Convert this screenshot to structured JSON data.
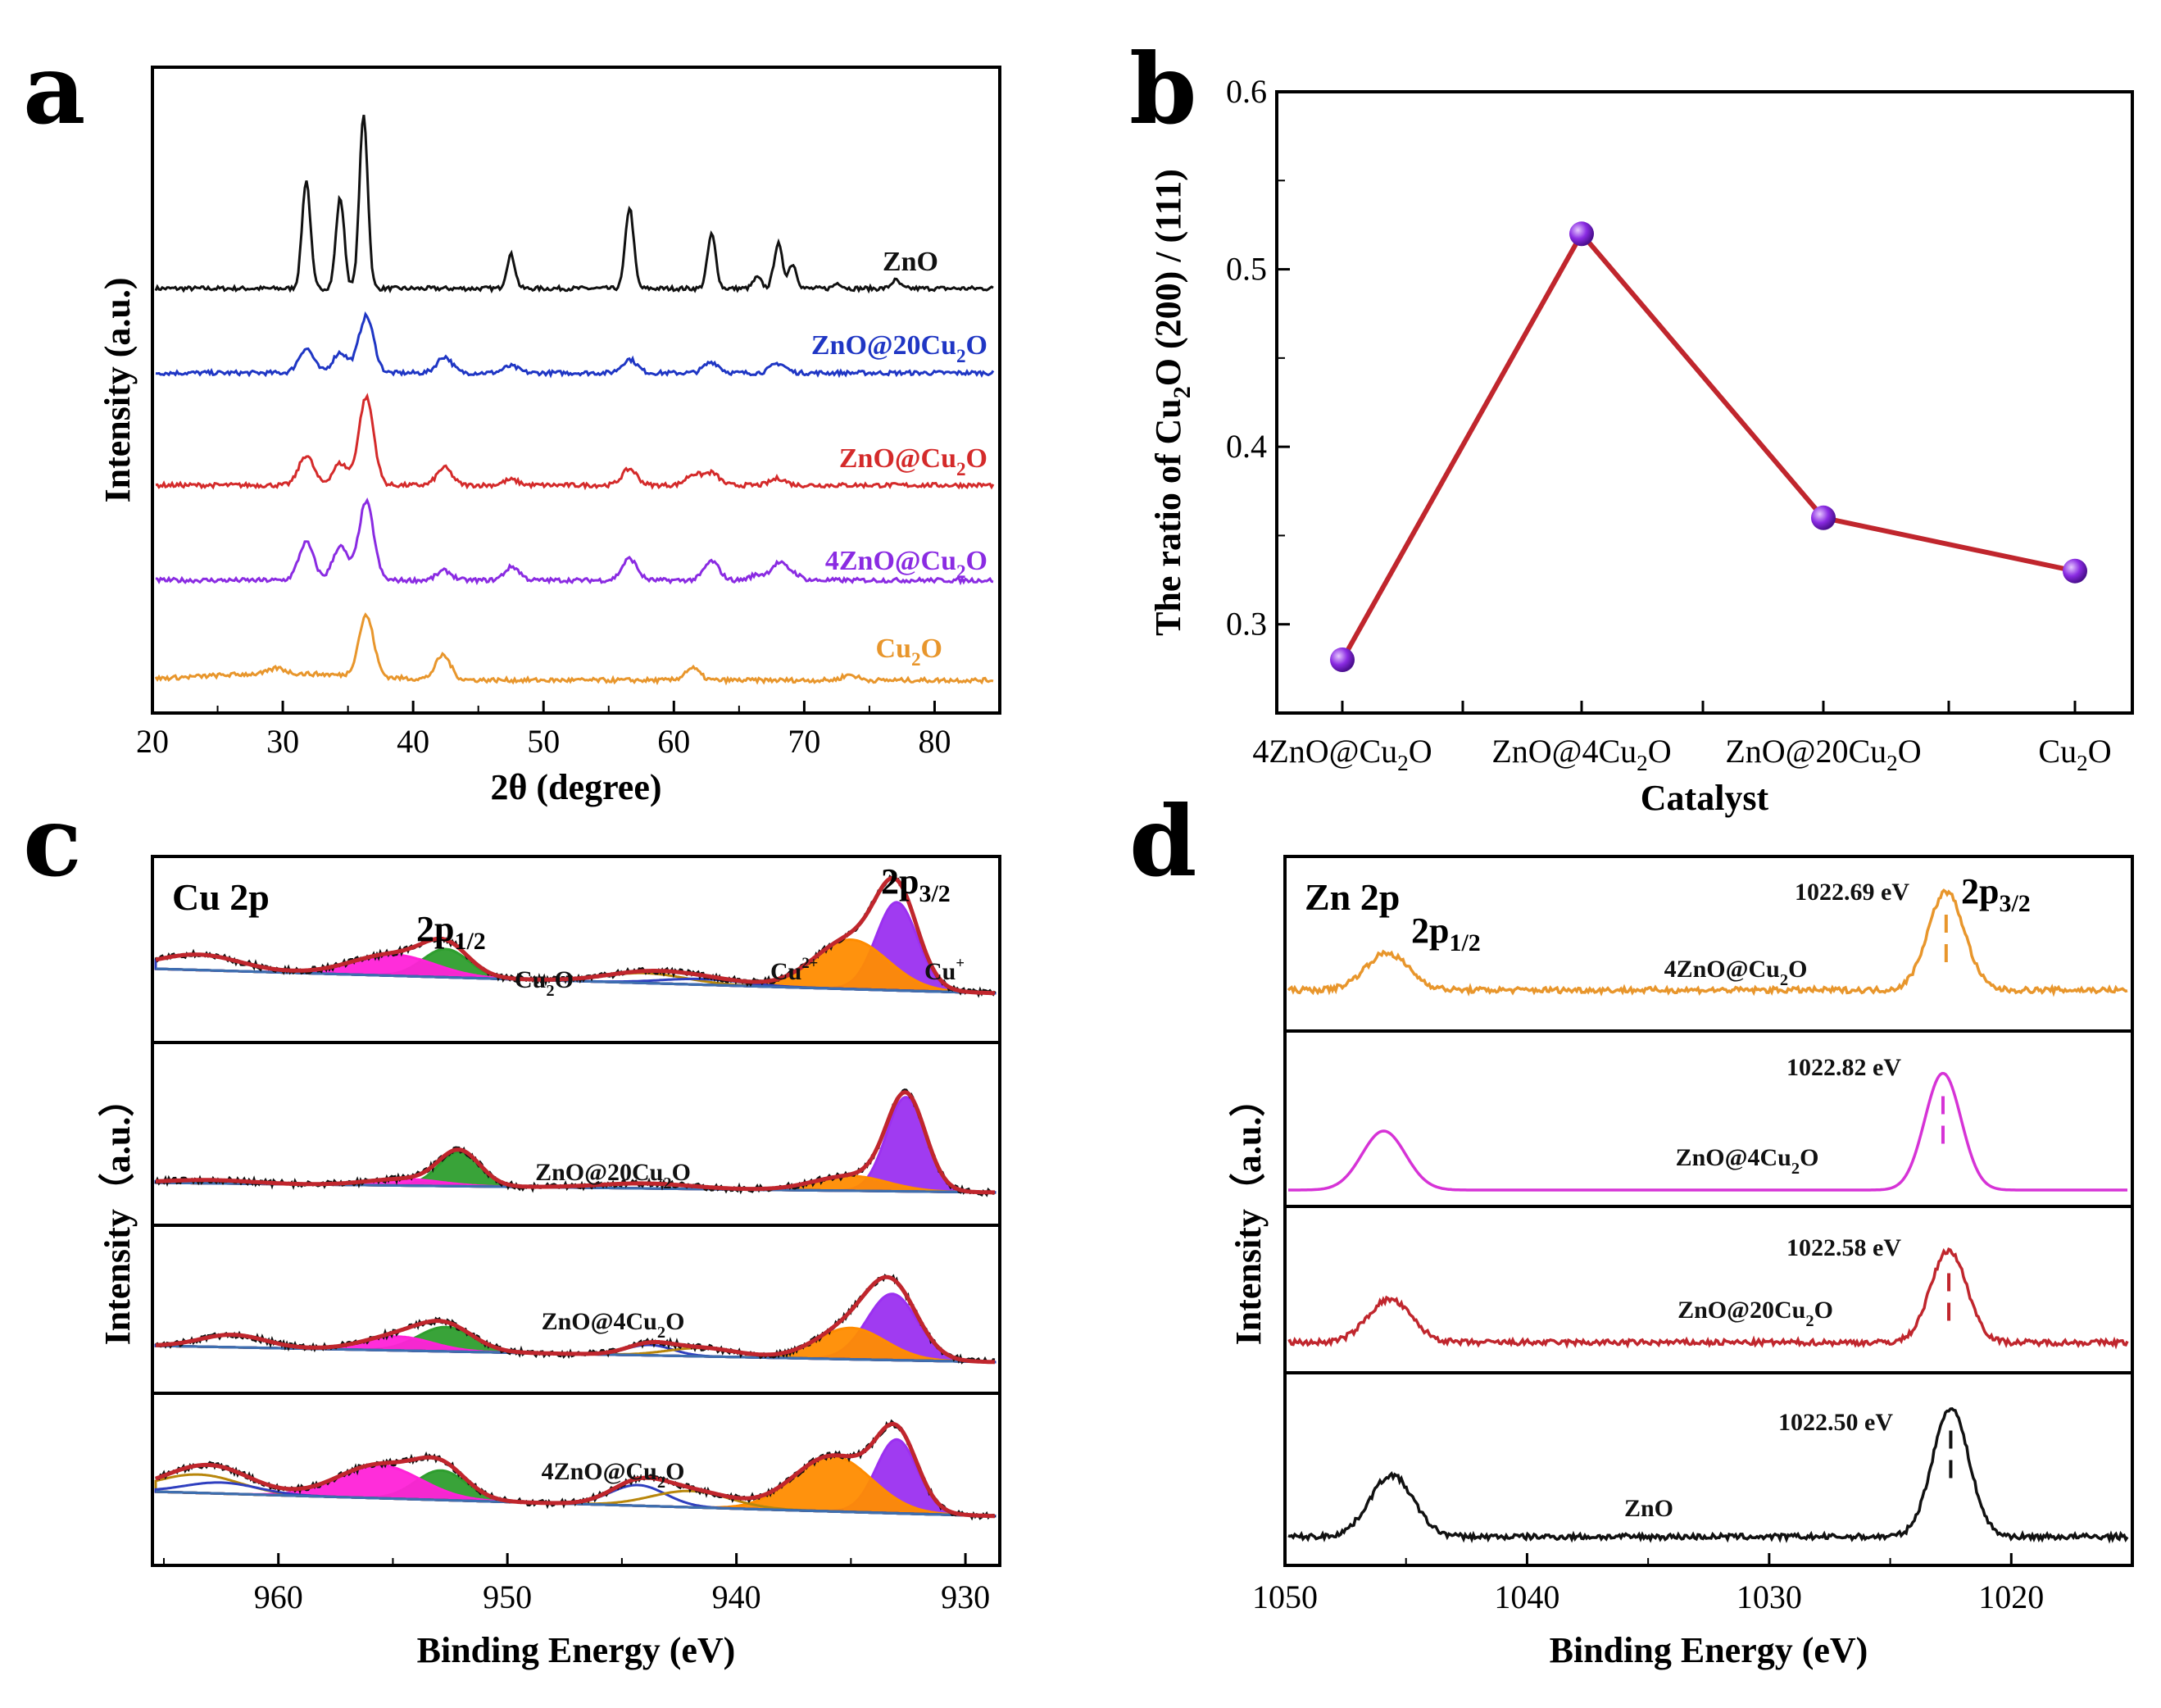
{
  "panel_labels": [
    "a",
    "b",
    "c",
    "d"
  ],
  "chart_data": [
    {
      "panel": "a",
      "type": "line",
      "xlabel": "2θ (degree)",
      "ylabel": "Intensity (a.u.)",
      "xlim": [
        20,
        85
      ],
      "xticks": [
        "20",
        "30",
        "40",
        "50",
        "60",
        "70",
        "80"
      ],
      "series": [
        {
          "name": "ZnO",
          "label": "ZnO",
          "color": "#111111",
          "peaks": [
            [
              31.8,
              80
            ],
            [
              34.4,
              67
            ],
            [
              36.2,
              128
            ],
            [
              47.5,
              25
            ],
            [
              56.6,
              60
            ],
            [
              62.9,
              40
            ],
            [
              66.4,
              8
            ],
            [
              68.0,
              33
            ],
            [
              69.1,
              18
            ],
            [
              72.6,
              4
            ],
            [
              77.0,
              6
            ]
          ]
        },
        {
          "name": "ZnO@20Cu2O",
          "label_main": "ZnO@20Cu",
          "label_sub": "2",
          "label_tail": "O",
          "color": "#1f36c4",
          "peaks": [
            [
              31.8,
              18
            ],
            [
              34.4,
              15
            ],
            [
              36.4,
              42
            ],
            [
              42.4,
              12
            ],
            [
              47.5,
              5
            ],
            [
              56.6,
              10
            ],
            [
              62.9,
              8
            ],
            [
              68.0,
              7
            ]
          ]
        },
        {
          "name": "ZnO@Cu2O",
          "label_main": "ZnO@Cu",
          "label_sub": "2",
          "label_tail": "O",
          "color": "#d42a2a",
          "peaks": [
            [
              31.8,
              22
            ],
            [
              34.4,
              16
            ],
            [
              36.4,
              65
            ],
            [
              42.4,
              13
            ],
            [
              47.5,
              4
            ],
            [
              56.6,
              12
            ],
            [
              61.5,
              8
            ],
            [
              62.9,
              9
            ],
            [
              68.0,
              5
            ]
          ]
        },
        {
          "name": "4ZnO@Cu2O",
          "label_main": "4ZnO@Cu",
          "label_sub": "2",
          "label_tail": "O",
          "color": "#8a2be2",
          "peaks": [
            [
              31.8,
              28
            ],
            [
              34.4,
              25
            ],
            [
              36.4,
              58
            ],
            [
              42.4,
              7
            ],
            [
              47.6,
              10
            ],
            [
              56.6,
              16
            ],
            [
              62.9,
              14
            ],
            [
              66.4,
              4
            ],
            [
              68.0,
              12
            ],
            [
              69.1,
              5
            ]
          ]
        },
        {
          "name": "Cu2O",
          "label_main": "Cu",
          "label_sub": "2",
          "label_tail": "O",
          "color": "#e8962c",
          "peaks": [
            [
              29.6,
              4
            ],
            [
              36.4,
              45
            ],
            [
              42.3,
              18
            ],
            [
              61.4,
              9
            ],
            [
              73.5,
              4
            ]
          ]
        }
      ]
    },
    {
      "panel": "b",
      "type": "line",
      "xlabel": "Catalyst",
      "ylabel": "The ratio of Cu2O (200) / (111)",
      "ylabel_parts": [
        "The ratio of Cu",
        "2",
        "O (200)  / (111)"
      ],
      "ylim": [
        0.25,
        0.6
      ],
      "yticks": [
        "0.3",
        "0.4",
        "0.5",
        "0.6"
      ],
      "categories": [
        "4ZnO@Cu2O",
        "ZnO@4Cu2O",
        "ZnO@20Cu2O",
        "Cu2O"
      ],
      "category_labels": [
        {
          "main": "4ZnO@Cu",
          "sub": "2",
          "tail": "O"
        },
        {
          "main": "ZnO@4Cu",
          "sub": "2",
          "tail": "O"
        },
        {
          "main": "ZnO@20Cu",
          "sub": "2",
          "tail": "O"
        },
        {
          "main": "Cu",
          "sub": "2",
          "tail": "O"
        }
      ],
      "values": [
        0.28,
        0.52,
        0.36,
        0.33
      ],
      "line_color": "#c0262d",
      "marker_color": "#8a2be2"
    },
    {
      "panel": "c",
      "type": "line",
      "title": "Cu 2p",
      "xlabel": "Binding Energy (eV)",
      "ylabel": "Intensity（a.u.）",
      "xlim": [
        965.5,
        928.5
      ],
      "xticks": [
        "960",
        "950",
        "940",
        "930"
      ],
      "peak_labels": {
        "p12_main": "2p",
        "p12_sub": "1/2",
        "p32_main": "2p",
        "p32_sub": "3/2",
        "cu2o_main": "Cu",
        "cu2o_sub": "2",
        "cu2o_tail": "O",
        "cu2_main": "Cu",
        "cu2_sup": "2+",
        "cu1_main": "Cu",
        "cu1_sup": "+"
      },
      "component_colors": {
        "cu_plus": "#9b30f0",
        "cu_2plus": "#ff8c00",
        "p12_cu2": "#ff22d8",
        "p12_cu1": "#2e9e2e",
        "sat_a": "#2f3fbf",
        "sat_b": "#b8860b",
        "envelope": "#c0262d",
        "raw": "#111111"
      },
      "series": [
        {
          "name": "Cu2O",
          "label": "",
          "components": [
            {
              "c": 933.0,
              "h": 125,
              "w": 0.9,
              "t": "cu_plus"
            },
            {
              "c": 935.0,
              "h": 70,
              "w": 1.6,
              "t": "cu_2plus"
            },
            {
              "c": 952.7,
              "h": 40,
              "w": 1.0,
              "t": "p12_cu1"
            },
            {
              "c": 955.0,
              "h": 30,
              "w": 1.8,
              "t": "p12_cu2"
            },
            {
              "c": 944.0,
              "h": 14,
              "w": 1.8,
              "t": "sat_b"
            },
            {
              "c": 941.5,
              "h": 8,
              "w": 1.8,
              "t": "sat_a"
            },
            {
              "c": 963.5,
              "h": 22,
              "w": 1.8,
              "t": "sat_a"
            }
          ]
        },
        {
          "name": "ZnO@20Cu2O",
          "label_main": "ZnO@20Cu",
          "label_sub": "2",
          "label_tail": "O",
          "components": [
            {
              "c": 932.6,
              "h": 115,
              "w": 0.85,
              "t": "cu_plus"
            },
            {
              "c": 935.0,
              "h": 18,
              "w": 1.6,
              "t": "cu_2plus"
            },
            {
              "c": 952.1,
              "h": 42,
              "w": 0.9,
              "t": "p12_cu1"
            },
            {
              "c": 954.5,
              "h": 8,
              "w": 1.6,
              "t": "p12_cu2"
            },
            {
              "c": 944.0,
              "h": 6,
              "w": 2.0,
              "t": "sat_b"
            },
            {
              "c": 963.0,
              "h": 4,
              "w": 1.8,
              "t": "sat_a"
            }
          ]
        },
        {
          "name": "ZnO@4Cu2O",
          "label_main": "ZnO@4Cu",
          "label_sub": "2",
          "label_tail": "O",
          "components": [
            {
              "c": 933.2,
              "h": 95,
              "w": 1.1,
              "t": "cu_plus"
            },
            {
              "c": 935.0,
              "h": 45,
              "w": 1.5,
              "t": "cu_2plus"
            },
            {
              "c": 952.7,
              "h": 35,
              "w": 1.2,
              "t": "p12_cu1"
            },
            {
              "c": 954.8,
              "h": 20,
              "w": 1.5,
              "t": "p12_cu2"
            },
            {
              "c": 943.8,
              "h": 15,
              "w": 1.0,
              "t": "sat_a"
            },
            {
              "c": 941.5,
              "h": 12,
              "w": 1.5,
              "t": "sat_b"
            },
            {
              "c": 962.0,
              "h": 18,
              "w": 1.4,
              "t": "sat_a"
            }
          ]
        },
        {
          "name": "4ZnO@Cu2O",
          "label_main": "4ZnO@Cu",
          "label_sub": "2",
          "label_tail": "O",
          "components": [
            {
              "c": 933.0,
              "h": 100,
              "w": 0.9,
              "t": "cu_plus"
            },
            {
              "c": 935.8,
              "h": 75,
              "w": 1.7,
              "t": "cu_2plus"
            },
            {
              "c": 952.9,
              "h": 40,
              "w": 1.1,
              "t": "p12_cu1"
            },
            {
              "c": 955.6,
              "h": 45,
              "w": 1.8,
              "t": "p12_cu2"
            },
            {
              "c": 944.3,
              "h": 28,
              "w": 1.2,
              "t": "sat_a"
            },
            {
              "c": 942.0,
              "h": 22,
              "w": 1.7,
              "t": "sat_b"
            },
            {
              "c": 963.5,
              "h": 25,
              "w": 1.8,
              "t": "sat_b"
            },
            {
              "c": 962.5,
              "h": 15,
              "w": 1.6,
              "t": "sat_a"
            }
          ]
        }
      ]
    },
    {
      "panel": "d",
      "type": "line",
      "title": "Zn 2p",
      "xlabel": "Binding Energy (eV)",
      "ylabel": "Intensity（a.u.）",
      "xlim": [
        1050,
        1015
      ],
      "xticks": [
        "1050",
        "1040",
        "1030",
        "1020"
      ],
      "peak_labels": {
        "p12_main": "2p",
        "p12_sub": "1/2",
        "p32_main": "2p",
        "p32_sub": "3/2"
      },
      "series": [
        {
          "name": "4ZnO@Cu2O",
          "label_main": "4ZnO@Cu",
          "label_sub": "2",
          "label_tail": "O",
          "color": "#e8962c",
          "peak_ev": 1022.69,
          "peak_label": "1022.69 eV",
          "p32_height": 80,
          "p12_height": 30
        },
        {
          "name": "ZnO@4Cu2O",
          "label_main": "ZnO@4Cu",
          "label_sub": "2",
          "label_tail": "O",
          "color": "#d633d6",
          "peak_ev": 1022.82,
          "peak_label": "1022.82 eV",
          "p32_height": 95,
          "p12_height": 48
        },
        {
          "name": "ZnO@20Cu2O",
          "label_main": "ZnO@20Cu",
          "label_sub": "2",
          "label_tail": "O",
          "color": "#c0262d",
          "peak_ev": 1022.58,
          "peak_label": "1022.58 eV",
          "p32_height": 75,
          "p12_height": 35
        },
        {
          "name": "ZnO",
          "label": "ZnO",
          "color": "#111111",
          "peak_ev": 1022.5,
          "peak_label": "1022.50 eV",
          "p32_height": 105,
          "p12_height": 50
        }
      ]
    }
  ]
}
